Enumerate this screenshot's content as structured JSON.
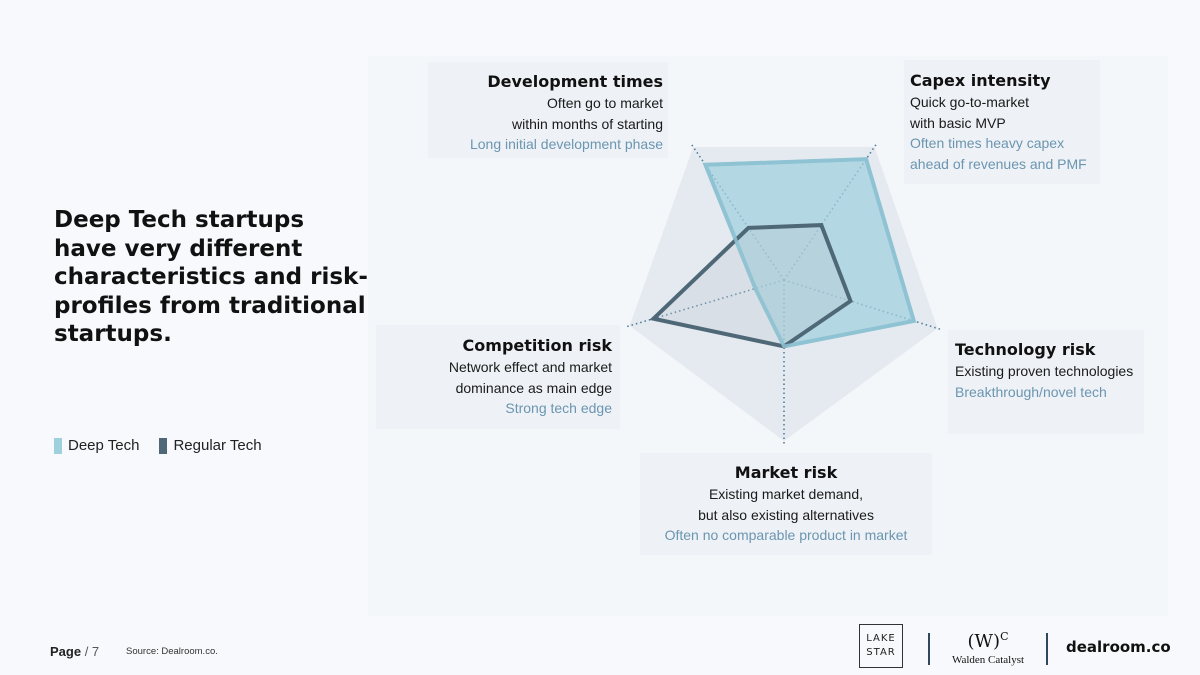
{
  "headline": "Deep Tech startups have very different characteristics and risk-profiles from traditional startups.",
  "legend": [
    {
      "label": "Deep Tech",
      "color": "#9fd0de"
    },
    {
      "label": "Regular Tech",
      "color": "#4f6878"
    }
  ],
  "axes": {
    "development": {
      "title": "Development times",
      "regular": [
        "Often go to market",
        "within months of starting"
      ],
      "deep": "Long initial development phase"
    },
    "capex": {
      "title": "Capex intensity",
      "regular": [
        "Quick go-to-market",
        "with basic MVP"
      ],
      "deep": [
        "Often times heavy capex",
        "ahead of revenues and PMF"
      ]
    },
    "technology": {
      "title": "Technology risk",
      "regular": "Existing proven technologies",
      "deep": "Breakthrough/novel tech"
    },
    "market": {
      "title": "Market risk",
      "regular": [
        "Existing market demand,",
        "but also existing alternatives"
      ],
      "deep": "Often no comparable product in market"
    },
    "competition": {
      "title": "Competition risk",
      "regular": [
        "Network effect and market",
        "dominance as main edge"
      ],
      "deep": "Strong tech edge"
    }
  },
  "chart_data": {
    "type": "radar",
    "categories": [
      "Development times",
      "Capex intensity",
      "Technology risk",
      "Market risk",
      "Competition risk"
    ],
    "series": [
      {
        "name": "Deep Tech",
        "values": [
          0.84,
          0.88,
          0.82,
          0.4,
          0.18
        ],
        "color": "#9fd0de"
      },
      {
        "name": "Regular Tech",
        "values": [
          0.38,
          0.4,
          0.42,
          0.4,
          0.82
        ],
        "color": "#4f6878"
      }
    ],
    "range": [
      0,
      1
    ]
  },
  "footer": {
    "page_label": "Page",
    "page_number": "/ 7",
    "source": "Source: Dealroom.co."
  },
  "logos": {
    "lakestar_line1": "LAKE",
    "lakestar_line2": "STAR",
    "walden_mark": "(W)",
    "walden_sup": "C",
    "walden_name": "Walden Catalyst",
    "dealroom": "dealroom.co"
  }
}
